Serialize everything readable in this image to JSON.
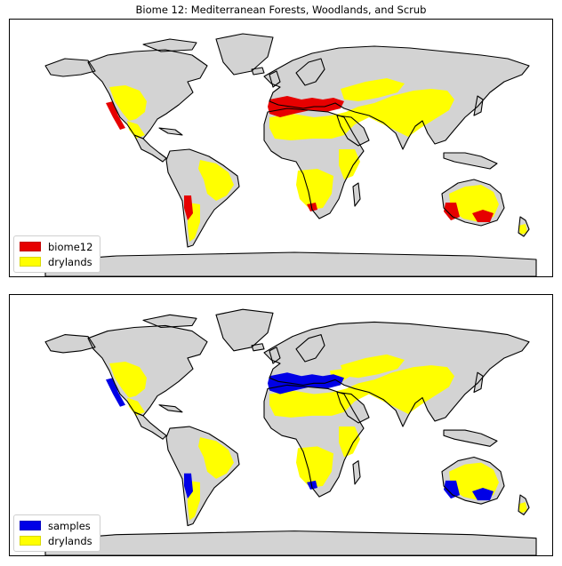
{
  "title": "Biome 12: Mediterranean Forests, Woodlands, and Scrub",
  "colors": {
    "land": "#d3d3d3",
    "coast": "#000000",
    "drylands": "#ffff00",
    "biome12": "#e60000",
    "samples": "#0000e6"
  },
  "panels": [
    {
      "legend": [
        {
          "label": "biome12",
          "color": "#e60000"
        },
        {
          "label": "drylands",
          "color": "#ffff00"
        }
      ]
    },
    {
      "legend": [
        {
          "label": "samples",
          "color": "#0000e6"
        },
        {
          "label": "drylands",
          "color": "#ffff00"
        }
      ]
    }
  ]
}
